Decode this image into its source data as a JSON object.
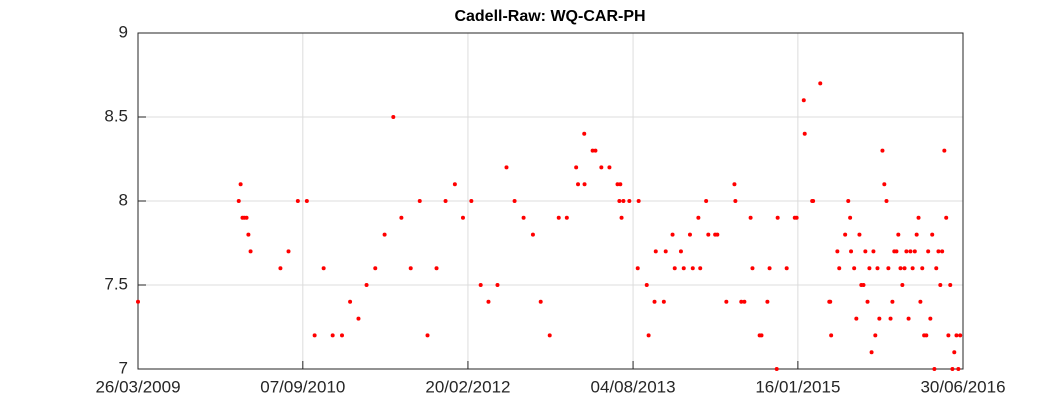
{
  "chart_data": {
    "type": "scatter",
    "title": "Cadell-Raw: WQ-CAR-PH",
    "color": "#ff0000",
    "grid": true,
    "xlim": [
      "2009-03-26",
      "2016-06-30"
    ],
    "xticks": [
      {
        "value": "2009-03-26",
        "label": "26/03/2009"
      },
      {
        "value": "2010-09-07",
        "label": "07/09/2010"
      },
      {
        "value": "2012-02-20",
        "label": "20/02/2012"
      },
      {
        "value": "2013-08-04",
        "label": "04/08/2013"
      },
      {
        "value": "2015-01-16",
        "label": "16/01/2015"
      },
      {
        "value": "2016-06-30",
        "label": "30/06/2016"
      }
    ],
    "ylim": [
      7,
      9
    ],
    "yticks": [
      7,
      7.5,
      8,
      8.5,
      9
    ],
    "x": [
      "2009-03-26",
      "2010-02-13",
      "2010-02-19",
      "2010-02-25",
      "2010-03-03",
      "2010-03-10",
      "2010-03-16",
      "2010-03-23",
      "2010-06-27",
      "2010-07-23",
      "2010-08-22",
      "2010-09-20",
      "2010-10-15",
      "2010-11-13",
      "2010-12-12",
      "2011-01-11",
      "2011-02-06",
      "2011-03-05",
      "2011-03-31",
      "2011-04-28",
      "2011-05-28",
      "2011-06-25",
      "2011-07-21",
      "2011-08-20",
      "2011-09-18",
      "2011-10-13",
      "2011-11-11",
      "2011-12-10",
      "2012-01-09",
      "2012-02-04",
      "2012-03-02",
      "2012-04-01",
      "2012-04-26",
      "2012-05-25",
      "2012-06-23",
      "2012-07-19",
      "2012-08-17",
      "2012-09-16",
      "2012-10-11",
      "2012-11-09",
      "2012-12-08",
      "2013-01-03",
      "2013-02-02",
      "2013-02-08",
      "2013-02-28",
      "2013-03-01",
      "2013-03-27",
      "2013-04-05",
      "2013-04-24",
      "2013-05-20",
      "2013-06-15",
      "2013-06-21",
      "2013-06-24",
      "2013-06-28",
      "2013-07-04",
      "2013-07-23",
      "2013-08-19",
      "2013-08-22",
      "2013-09-17",
      "2013-09-23",
      "2013-10-12",
      "2013-10-16",
      "2013-11-11",
      "2013-11-17",
      "2013-12-09",
      "2013-12-16",
      "2014-01-05",
      "2014-01-14",
      "2014-02-03",
      "2014-02-12",
      "2014-03-02",
      "2014-03-08",
      "2014-03-27",
      "2014-04-03",
      "2014-04-25",
      "2014-05-02",
      "2014-05-31",
      "2014-06-26",
      "2014-06-29",
      "2014-07-18",
      "2014-07-28",
      "2014-08-17",
      "2014-08-23",
      "2014-09-15",
      "2014-09-21",
      "2014-10-10",
      "2014-10-17",
      "2014-11-09",
      "2014-11-12",
      "2014-12-11",
      "2015-01-06",
      "2015-01-12",
      "2015-02-04",
      "2015-02-07",
      "2015-03-03",
      "2015-03-06",
      "2015-03-29",
      "2015-04-27",
      "2015-04-30",
      "2015-05-03",
      "2015-05-23",
      "2015-05-29",
      "2015-06-17",
      "2015-06-27",
      "2015-07-03",
      "2015-07-06",
      "2015-07-16",
      "2015-07-23",
      "2015-08-02",
      "2015-08-08",
      "2015-08-15",
      "2015-08-21",
      "2015-08-28",
      "2015-09-03",
      "2015-09-10",
      "2015-09-16",
      "2015-09-22",
      "2015-09-29",
      "2015-10-05",
      "2015-10-15",
      "2015-10-21",
      "2015-10-28",
      "2015-11-03",
      "2015-11-10",
      "2015-11-16",
      "2015-11-22",
      "2015-11-29",
      "2015-12-05",
      "2015-12-12",
      "2015-12-18",
      "2015-12-25",
      "2015-12-31",
      "2016-01-07",
      "2016-01-13",
      "2016-01-20",
      "2016-01-27",
      "2016-02-02",
      "2016-02-08",
      "2016-02-14",
      "2016-02-20",
      "2016-02-26",
      "2016-03-04",
      "2016-03-10",
      "2016-03-17",
      "2016-03-23",
      "2016-03-30",
      "2016-04-05",
      "2016-04-12",
      "2016-04-18",
      "2016-04-24",
      "2016-05-01",
      "2016-05-07",
      "2016-05-14",
      "2016-05-20",
      "2016-05-27",
      "2016-06-02",
      "2016-06-09",
      "2016-06-15",
      "2016-06-21"
    ],
    "values": [
      7.4,
      8.0,
      8.1,
      7.9,
      7.9,
      7.9,
      7.8,
      7.7,
      7.6,
      7.7,
      8.0,
      8.0,
      7.2,
      7.6,
      7.2,
      7.2,
      7.4,
      7.3,
      7.5,
      7.6,
      7.8,
      8.5,
      7.9,
      7.6,
      8.0,
      7.2,
      7.6,
      8.0,
      8.1,
      7.9,
      8.0,
      7.5,
      7.4,
      7.5,
      8.2,
      8.0,
      7.9,
      7.8,
      7.4,
      7.2,
      7.9,
      7.9,
      8.2,
      8.1,
      8.4,
      8.1,
      8.3,
      8.3,
      8.2,
      8.2,
      8.1,
      8.0,
      8.1,
      7.9,
      8.0,
      8.0,
      7.6,
      8.0,
      7.5,
      7.2,
      7.4,
      7.7,
      7.4,
      7.7,
      7.8,
      7.6,
      7.7,
      7.6,
      7.8,
      7.6,
      7.9,
      7.6,
      8.0,
      7.8,
      7.8,
      7.8,
      7.4,
      8.1,
      8.0,
      7.4,
      7.4,
      7.9,
      7.6,
      7.2,
      7.2,
      7.4,
      7.6,
      7.0,
      7.9,
      7.6,
      7.9,
      7.9,
      8.6,
      8.4,
      8.0,
      8.0,
      8.7,
      7.4,
      7.4,
      7.2,
      7.7,
      7.6,
      7.8,
      8.0,
      7.9,
      7.7,
      7.6,
      7.3,
      7.8,
      7.5,
      7.5,
      7.7,
      7.4,
      7.6,
      7.1,
      7.7,
      7.2,
      7.6,
      7.3,
      8.3,
      8.1,
      8.0,
      7.6,
      7.3,
      7.4,
      7.7,
      7.7,
      7.8,
      7.6,
      7.5,
      7.6,
      7.7,
      7.3,
      7.7,
      7.6,
      7.7,
      7.8,
      7.9,
      7.4,
      7.6,
      7.2,
      7.2,
      7.7,
      7.3,
      7.8,
      7.0,
      7.6,
      7.7,
      7.5,
      7.7,
      8.3,
      7.9,
      7.2,
      7.5,
      7.0,
      7.1,
      7.2,
      7.0,
      7.2
    ]
  }
}
